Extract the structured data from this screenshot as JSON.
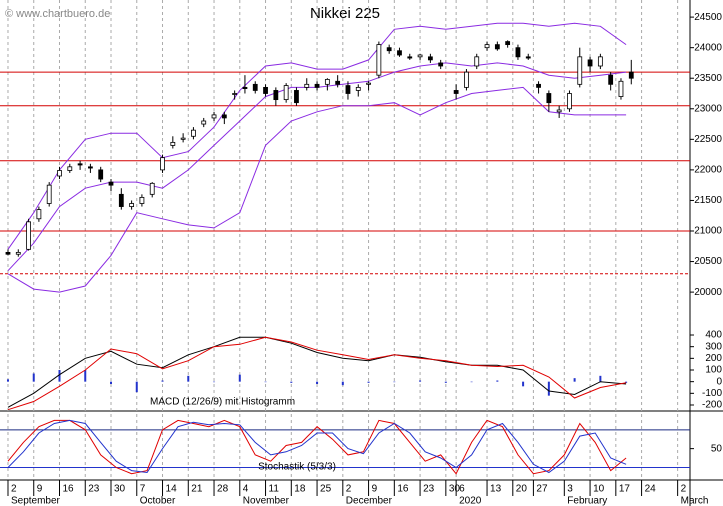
{
  "chart_data": [
    {
      "type": "candlestick",
      "title": "Nikkei 225",
      "annotation": "© www.chartbuero.de",
      "x": [
        0,
        2,
        4,
        6,
        8,
        10,
        12,
        14,
        16,
        18,
        20,
        22,
        24,
        26,
        28,
        30,
        32,
        34,
        36,
        38,
        40,
        42,
        44,
        46,
        48,
        50,
        52,
        54,
        56,
        58,
        60,
        62,
        64,
        66,
        68,
        70,
        72,
        74,
        76,
        78,
        80,
        82,
        84,
        87,
        89,
        91,
        93,
        95,
        97,
        99,
        101,
        103,
        105,
        107,
        109,
        111,
        113,
        115,
        117,
        119,
        121
      ],
      "open": [
        20650,
        20620,
        20700,
        21200,
        21450,
        21900,
        21990,
        22100,
        22050,
        22000,
        21800,
        21600,
        21400,
        21450,
        21600,
        22000,
        22400,
        22500,
        22550,
        22750,
        22850,
        22900,
        23250,
        23350,
        23400,
        23350,
        23300,
        23150,
        23300,
        23350,
        23400,
        23400,
        23450,
        23380,
        23300,
        23400,
        23550,
        24000,
        23950,
        23850,
        23850,
        23850,
        23750,
        23300,
        23350,
        23700,
        24000,
        24050,
        24100,
        24000,
        23850,
        23400,
        23250,
        22950,
        23000,
        23400,
        23800,
        23700,
        23550,
        23200,
        23600
      ],
      "high": [
        20700,
        20700,
        21200,
        21400,
        21800,
        22050,
        22100,
        22150,
        22100,
        22050,
        21850,
        21700,
        21500,
        21600,
        21800,
        22250,
        22550,
        22600,
        22700,
        22850,
        22950,
        22950,
        23300,
        23550,
        23450,
        23400,
        23350,
        23420,
        23350,
        23500,
        23450,
        23500,
        23550,
        23450,
        23400,
        23450,
        24100,
        24050,
        24000,
        23900,
        23900,
        23900,
        23800,
        23400,
        23650,
        23900,
        24100,
        24100,
        24120,
        24050,
        23900,
        23450,
        23300,
        23050,
        23300,
        24000,
        23850,
        23900,
        23600,
        23500,
        23800
      ],
      "low": [
        20600,
        20580,
        20680,
        21150,
        21400,
        21850,
        21950,
        22000,
        21950,
        21800,
        21650,
        21350,
        21350,
        21400,
        21550,
        21950,
        22350,
        22450,
        22500,
        22700,
        22800,
        22750,
        23150,
        23250,
        23250,
        23200,
        23050,
        23100,
        23050,
        23300,
        23300,
        23300,
        23350,
        23150,
        23200,
        23300,
        23500,
        23900,
        23850,
        23800,
        23800,
        23750,
        23650,
        23150,
        23300,
        23650,
        23950,
        23950,
        24000,
        23800,
        23800,
        23250,
        22950,
        22850,
        22950,
        23350,
        23600,
        23650,
        23300,
        23150,
        23400
      ],
      "close": [
        20620,
        20650,
        21150,
        21350,
        21750,
        21990,
        22050,
        22080,
        22030,
        21850,
        21750,
        21400,
        21450,
        21550,
        21780,
        22200,
        22450,
        22520,
        22650,
        22800,
        22900,
        22850,
        23250,
        23330,
        23300,
        23250,
        23150,
        23380,
        23100,
        23400,
        23350,
        23480,
        23400,
        23250,
        23350,
        23420,
        24050,
        23950,
        23880,
        23830,
        23880,
        23800,
        23700,
        23250,
        23600,
        23850,
        24050,
        23980,
        24050,
        23850,
        23830,
        23350,
        23100,
        22980,
        23250,
        23850,
        23700,
        23850,
        23400,
        23450,
        23500
      ],
      "up_color": "#ffffff",
      "down_color": "#000000",
      "overlays": [
        {
          "color": "#8a2be2",
          "x": [
            0,
            5,
            10,
            15,
            20,
            25,
            30,
            35,
            40,
            45,
            50,
            55,
            60,
            65,
            70,
            75,
            80,
            85,
            90,
            95,
            100,
            105,
            110,
            115,
            120
          ],
          "values": [
            20700,
            21300,
            22000,
            22500,
            22600,
            22600,
            22200,
            22300,
            22700,
            23300,
            23700,
            23750,
            23650,
            23650,
            23800,
            24300,
            24350,
            24300,
            24350,
            24400,
            24400,
            24350,
            24400,
            24350,
            24050
          ]
        },
        {
          "color": "#8a2be2",
          "x": [
            0,
            5,
            10,
            15,
            20,
            25,
            30,
            35,
            40,
            45,
            50,
            55,
            60,
            65,
            70,
            75,
            80,
            85,
            90,
            95,
            100,
            105,
            110,
            115,
            120
          ],
          "values": [
            20350,
            20800,
            21400,
            21700,
            21800,
            21800,
            21700,
            22000,
            22400,
            22800,
            23200,
            23350,
            23350,
            23400,
            23450,
            23600,
            23700,
            23750,
            23700,
            23750,
            23700,
            23550,
            23500,
            23550,
            23600
          ]
        },
        {
          "color": "#8a2be2",
          "x": [
            0,
            5,
            10,
            15,
            20,
            25,
            30,
            35,
            40,
            45,
            50,
            55,
            60,
            65,
            70,
            75,
            80,
            85,
            90,
            95,
            100,
            105,
            110,
            115,
            120
          ],
          "values": [
            20300,
            20050,
            20000,
            20100,
            20600,
            21300,
            21200,
            21100,
            21050,
            21300,
            22400,
            22800,
            22950,
            23050,
            23050,
            23100,
            22900,
            23100,
            23250,
            23300,
            23350,
            22950,
            22900,
            22900,
            22900
          ]
        }
      ],
      "levels": [
        {
          "value": 23600,
          "color": "#d40000"
        },
        {
          "value": 23050,
          "color": "#d40000"
        },
        {
          "value": 22150,
          "color": "#d40000"
        },
        {
          "value": 21000,
          "color": "#d40000"
        },
        {
          "value": 20300,
          "color": "#d40000",
          "dashed": true
        }
      ],
      "ylim": [
        19380,
        24780
      ],
      "yticks": [
        20000,
        20500,
        21000,
        21500,
        22000,
        22500,
        23000,
        23500,
        24000,
        24500
      ],
      "xlim": [
        -1.55,
        132.4
      ],
      "grid": "x",
      "xticks": [
        {
          "value": 0,
          "label": "2",
          "month": "September"
        },
        {
          "value": 5,
          "label": "9"
        },
        {
          "value": 10,
          "label": "16"
        },
        {
          "value": 15,
          "label": "23"
        },
        {
          "value": 20,
          "label": "30"
        },
        {
          "value": 25,
          "label": "7",
          "month": "October"
        },
        {
          "value": 30,
          "label": "14"
        },
        {
          "value": 35,
          "label": "21"
        },
        {
          "value": 40,
          "label": "28"
        },
        {
          "value": 45,
          "label": "4",
          "month": "November"
        },
        {
          "value": 50,
          "label": "11"
        },
        {
          "value": 55,
          "label": "18"
        },
        {
          "value": 60,
          "label": "25"
        },
        {
          "value": 65,
          "label": "2",
          "month": "December"
        },
        {
          "value": 70,
          "label": "9"
        },
        {
          "value": 75,
          "label": "16"
        },
        {
          "value": 80,
          "label": "23"
        },
        {
          "value": 85,
          "label": "30"
        },
        {
          "value": 87,
          "label": "6",
          "month": "2020"
        },
        {
          "value": 93,
          "label": "13"
        },
        {
          "value": 98,
          "label": "20"
        },
        {
          "value": 102,
          "label": "27"
        },
        {
          "value": 108,
          "label": "3",
          "month": "February"
        },
        {
          "value": 113,
          "label": "10"
        },
        {
          "value": 118,
          "label": "17"
        },
        {
          "value": 123,
          "label": "24"
        },
        {
          "value": 130,
          "label": "2",
          "month": "March"
        }
      ]
    },
    {
      "type": "macd",
      "annotation": "MACD (12/26/9) mit Histogramm",
      "x": [
        0,
        5,
        10,
        15,
        20,
        25,
        30,
        35,
        40,
        45,
        50,
        55,
        60,
        65,
        70,
        75,
        80,
        85,
        90,
        95,
        100,
        105,
        110,
        115,
        120
      ],
      "series": [
        {
          "color": "#000000",
          "values": [
            -220,
            -100,
            60,
            200,
            260,
            150,
            120,
            230,
            300,
            380,
            380,
            330,
            250,
            200,
            180,
            230,
            210,
            170,
            140,
            140,
            100,
            -80,
            -110,
            0,
            -20
          ]
        },
        {
          "color": "#e00000",
          "values": [
            -240,
            -170,
            -40,
            100,
            280,
            240,
            110,
            180,
            300,
            320,
            380,
            340,
            270,
            230,
            190,
            230,
            200,
            180,
            140,
            130,
            140,
            40,
            -140,
            -50,
            -10
          ]
        }
      ],
      "histogram": {
        "color": "#2233cc",
        "values": [
          20,
          70,
          100,
          100,
          -20,
          -90,
          10,
          50,
          0,
          60,
          0,
          -10,
          -20,
          -30,
          -10,
          0,
          10,
          -10,
          0,
          10,
          -40,
          -120,
          30,
          50,
          -10
        ]
      },
      "ylim": [
        -243,
        443
      ],
      "yticks": [
        -200,
        -100,
        0,
        100,
        200,
        300,
        400
      ]
    },
    {
      "type": "stochastic",
      "annotation": "Stochastik (5/3/3)",
      "x": [
        0,
        3,
        6,
        9,
        12,
        15,
        18,
        21,
        24,
        27,
        30,
        33,
        36,
        39,
        42,
        45,
        48,
        51,
        54,
        57,
        60,
        63,
        66,
        69,
        72,
        75,
        78,
        81,
        84,
        87,
        90,
        93,
        96,
        99,
        102,
        105,
        108,
        111,
        114,
        117,
        120
      ],
      "series": [
        {
          "color": "#e00000",
          "values": [
            30,
            60,
            85,
            95,
            95,
            80,
            40,
            20,
            10,
            15,
            80,
            95,
            90,
            85,
            95,
            85,
            40,
            30,
            55,
            60,
            85,
            65,
            40,
            45,
            95,
            90,
            60,
            30,
            40,
            10,
            60,
            95,
            85,
            40,
            10,
            15,
            40,
            90,
            60,
            15,
            35
          ]
        },
        {
          "color": "#2233cc",
          "values": [
            20,
            45,
            75,
            90,
            95,
            90,
            60,
            30,
            15,
            12,
            50,
            85,
            92,
            88,
            90,
            88,
            60,
            40,
            45,
            55,
            75,
            75,
            50,
            42,
            75,
            90,
            75,
            45,
            35,
            20,
            40,
            80,
            90,
            60,
            25,
            12,
            30,
            70,
            75,
            35,
            25
          ]
        }
      ],
      "levels": [
        {
          "value": 80,
          "color": "#1a2a80"
        },
        {
          "value": 20,
          "color": "#2233cc"
        }
      ],
      "ylim": [
        0,
        110
      ],
      "yticks": [
        50
      ]
    }
  ]
}
